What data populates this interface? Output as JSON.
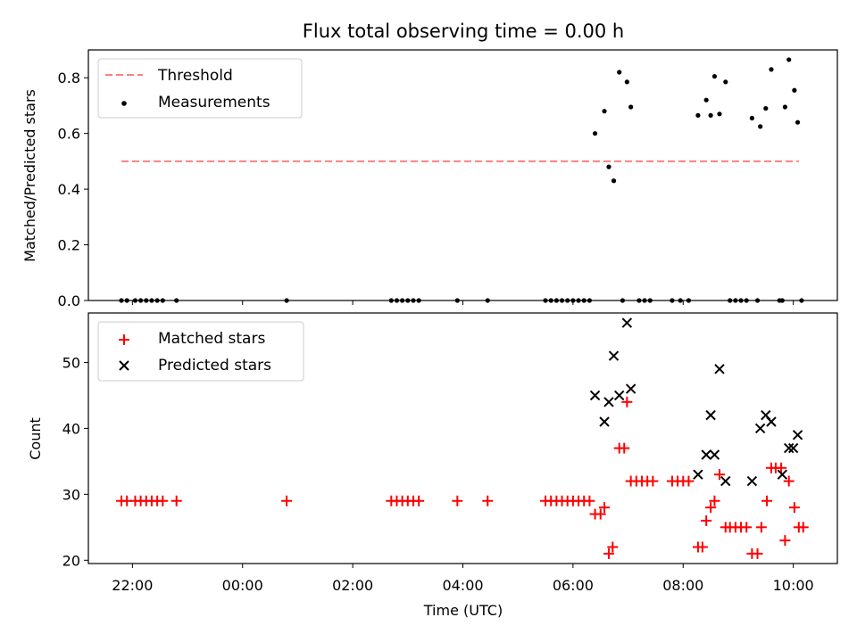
{
  "chart_data": {
    "title": "Flux total observing time = 0.00 h",
    "xlabel": "Time (UTC)",
    "x_ticks": [
      {
        "hour": -2,
        "label": "22:00"
      },
      {
        "hour": 0,
        "label": "00:00"
      },
      {
        "hour": 2,
        "label": "02:00"
      },
      {
        "hour": 4,
        "label": "04:00"
      },
      {
        "hour": 6,
        "label": "06:00"
      },
      {
        "hour": 8,
        "label": "08:00"
      },
      {
        "hour": 10,
        "label": "10:00"
      }
    ],
    "x_unit_note": "x values are hours relative to 00:00 UTC",
    "top": {
      "type": "scatter",
      "ylabel": "Matched/Predicted stars",
      "ylim": [
        0,
        0.9
      ],
      "y_ticks": [
        "0.0",
        "0.2",
        "0.4",
        "0.6",
        "0.8"
      ],
      "legend": [
        "Threshold",
        "Measurements"
      ],
      "threshold": {
        "name": "Threshold",
        "y": 0.5,
        "x_range": [
          -2.2,
          10.1
        ],
        "color": "#ff7f7f"
      },
      "measurements": {
        "name": "Measurements",
        "color": "#000000",
        "points": [
          [
            -2.2,
            0
          ],
          [
            -2.1,
            0
          ],
          [
            -1.95,
            0
          ],
          [
            -1.85,
            0
          ],
          [
            -1.75,
            0
          ],
          [
            -1.65,
            0
          ],
          [
            -1.55,
            0
          ],
          [
            -1.45,
            0
          ],
          [
            -1.2,
            0
          ],
          [
            0.8,
            0
          ],
          [
            2.7,
            0
          ],
          [
            2.8,
            0
          ],
          [
            2.9,
            0
          ],
          [
            3.0,
            0
          ],
          [
            3.1,
            0
          ],
          [
            3.2,
            0
          ],
          [
            3.9,
            0
          ],
          [
            4.45,
            0
          ],
          [
            5.5,
            0
          ],
          [
            5.6,
            0
          ],
          [
            5.7,
            0
          ],
          [
            5.8,
            0
          ],
          [
            5.9,
            0
          ],
          [
            6.0,
            0
          ],
          [
            6.1,
            0
          ],
          [
            6.2,
            0
          ],
          [
            6.3,
            0
          ],
          [
            6.9,
            0
          ],
          [
            7.2,
            0
          ],
          [
            7.3,
            0
          ],
          [
            7.4,
            0
          ],
          [
            7.8,
            0
          ],
          [
            7.95,
            0
          ],
          [
            8.1,
            0
          ],
          [
            8.85,
            0
          ],
          [
            8.95,
            0
          ],
          [
            9.05,
            0
          ],
          [
            9.15,
            0
          ],
          [
            9.35,
            0
          ],
          [
            9.75,
            0
          ],
          [
            9.8,
            0
          ],
          [
            10.15,
            0
          ],
          [
            6.4,
            0.6
          ],
          [
            6.57,
            0.68
          ],
          [
            6.65,
            0.48
          ],
          [
            6.74,
            0.43
          ],
          [
            6.84,
            0.82
          ],
          [
            6.98,
            0.785
          ],
          [
            7.05,
            0.695
          ],
          [
            8.27,
            0.665
          ],
          [
            8.42,
            0.72
          ],
          [
            8.5,
            0.665
          ],
          [
            8.57,
            0.805
          ],
          [
            8.66,
            0.67
          ],
          [
            8.77,
            0.785
          ],
          [
            9.25,
            0.655
          ],
          [
            9.4,
            0.625
          ],
          [
            9.5,
            0.69
          ],
          [
            9.6,
            0.83
          ],
          [
            9.85,
            0.695
          ],
          [
            9.92,
            0.865
          ],
          [
            10.02,
            0.755
          ],
          [
            10.08,
            0.64
          ]
        ]
      }
    },
    "bottom": {
      "type": "scatter",
      "ylabel": "Count",
      "ylim": [
        19.5,
        57.5
      ],
      "y_ticks": [
        20,
        30,
        40,
        50
      ],
      "legend": [
        "Matched stars",
        "Predicted stars"
      ],
      "series": [
        {
          "name": "Matched stars",
          "marker": "+",
          "color": "#ff0000",
          "points": [
            [
              -2.2,
              29
            ],
            [
              -2.1,
              29
            ],
            [
              -1.95,
              29
            ],
            [
              -1.85,
              29
            ],
            [
              -1.75,
              29
            ],
            [
              -1.65,
              29
            ],
            [
              -1.55,
              29
            ],
            [
              -1.45,
              29
            ],
            [
              -1.2,
              29
            ],
            [
              0.8,
              29
            ],
            [
              2.7,
              29
            ],
            [
              2.8,
              29
            ],
            [
              2.9,
              29
            ],
            [
              3.0,
              29
            ],
            [
              3.1,
              29
            ],
            [
              3.2,
              29
            ],
            [
              3.9,
              29
            ],
            [
              4.45,
              29
            ],
            [
              5.5,
              29
            ],
            [
              5.6,
              29
            ],
            [
              5.7,
              29
            ],
            [
              5.8,
              29
            ],
            [
              5.9,
              29
            ],
            [
              6.0,
              29
            ],
            [
              6.1,
              29
            ],
            [
              6.2,
              29
            ],
            [
              6.3,
              29
            ],
            [
              6.4,
              27
            ],
            [
              6.5,
              27
            ],
            [
              6.57,
              28
            ],
            [
              6.65,
              21
            ],
            [
              6.72,
              22
            ],
            [
              6.84,
              37
            ],
            [
              6.93,
              37
            ],
            [
              6.98,
              44
            ],
            [
              7.05,
              32
            ],
            [
              7.15,
              32
            ],
            [
              7.25,
              32
            ],
            [
              7.35,
              32
            ],
            [
              7.45,
              32
            ],
            [
              7.8,
              32
            ],
            [
              7.9,
              32
            ],
            [
              8.0,
              32
            ],
            [
              8.1,
              32
            ],
            [
              8.27,
              22
            ],
            [
              8.35,
              22
            ],
            [
              8.42,
              26
            ],
            [
              8.5,
              28
            ],
            [
              8.57,
              29
            ],
            [
              8.66,
              33
            ],
            [
              8.77,
              25
            ],
            [
              8.85,
              25
            ],
            [
              8.95,
              25
            ],
            [
              9.05,
              25
            ],
            [
              9.15,
              25
            ],
            [
              9.25,
              21
            ],
            [
              9.35,
              21
            ],
            [
              9.42,
              25
            ],
            [
              9.52,
              29
            ],
            [
              9.6,
              34
            ],
            [
              9.68,
              34
            ],
            [
              9.78,
              34
            ],
            [
              9.85,
              23
            ],
            [
              9.92,
              32
            ],
            [
              10.02,
              28
            ],
            [
              10.1,
              25
            ],
            [
              10.18,
              25
            ]
          ]
        },
        {
          "name": "Predicted stars",
          "marker": "x",
          "color": "#000000",
          "points": [
            [
              6.4,
              45
            ],
            [
              6.57,
              41
            ],
            [
              6.65,
              44
            ],
            [
              6.74,
              51
            ],
            [
              6.84,
              45
            ],
            [
              6.98,
              56
            ],
            [
              7.05,
              46
            ],
            [
              8.27,
              33
            ],
            [
              8.42,
              36
            ],
            [
              8.5,
              42
            ],
            [
              8.57,
              36
            ],
            [
              8.66,
              49
            ],
            [
              8.77,
              32
            ],
            [
              9.25,
              32
            ],
            [
              9.4,
              40
            ],
            [
              9.5,
              42
            ],
            [
              9.6,
              41
            ],
            [
              9.8,
              33
            ],
            [
              9.92,
              37
            ],
            [
              10.0,
              37
            ],
            [
              10.08,
              39
            ]
          ]
        }
      ]
    }
  }
}
